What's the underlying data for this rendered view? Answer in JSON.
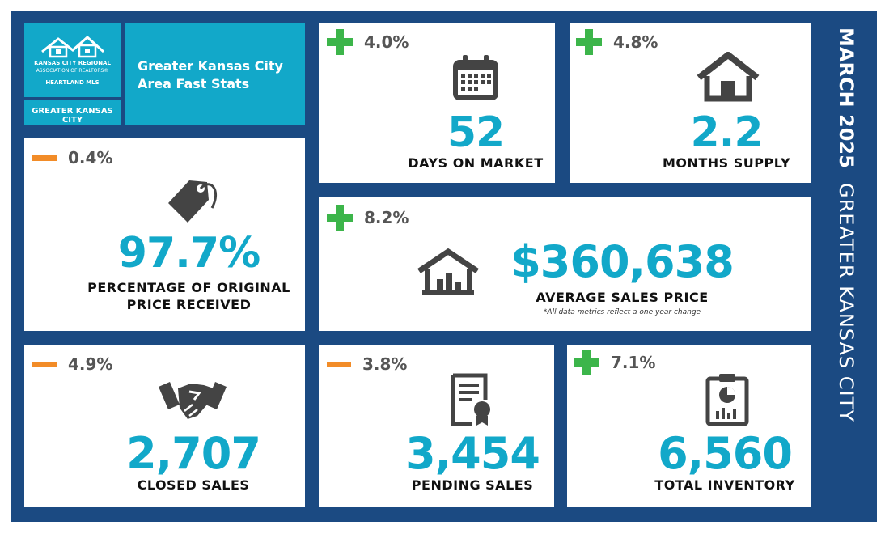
{
  "logo": {
    "line1": "KANSAS CITY REGIONAL",
    "line2": "ASSOCIATION OF REALTORS®",
    "line3": "HEARTLAND MLS",
    "region_tag": "GREATER KANSAS CITY"
  },
  "header": {
    "title_line1": "Greater Kansas City",
    "title_line2": "Area Fast Stats"
  },
  "side": {
    "month": "MARCH 2025",
    "region": "GREATER KANSAS CITY"
  },
  "stats": {
    "days_on_market": {
      "change": "4.0%",
      "direction": "up",
      "value": "52",
      "label": "DAYS ON MARKET",
      "icon": "calendar-icon"
    },
    "months_supply": {
      "change": "4.8%",
      "direction": "up",
      "value": "2.2",
      "label": "MONTHS SUPPLY",
      "icon": "house-icon"
    },
    "pct_original_price": {
      "change": "0.4%",
      "direction": "down",
      "value": "97.7%",
      "label_line1": "PERCENTAGE OF ORIGINAL",
      "label_line2": "PRICE RECEIVED",
      "icon": "price-tag-icon"
    },
    "avg_sales_price": {
      "change": "8.2%",
      "direction": "up",
      "value": "$360,638",
      "label": "AVERAGE SALES PRICE",
      "note": "*All data metrics reflect a one year change",
      "icon": "house-chart-icon"
    },
    "closed_sales": {
      "change": "4.9%",
      "direction": "down",
      "value": "2,707",
      "label": "CLOSED SALES",
      "icon": "handshake-icon"
    },
    "pending_sales": {
      "change": "3.8%",
      "direction": "down",
      "value": "3,454",
      "label": "PENDING SALES",
      "icon": "certificate-icon"
    },
    "total_inventory": {
      "change": "7.1%",
      "direction": "up",
      "value": "6,560",
      "label": "TOTAL INVENTORY",
      "icon": "clipboard-chart-icon"
    }
  },
  "colors": {
    "navy": "#1b4a82",
    "teal": "#12a8c9",
    "up_green": "#3cb54a",
    "down_orange": "#f28c28",
    "icon_gray": "#444444"
  }
}
